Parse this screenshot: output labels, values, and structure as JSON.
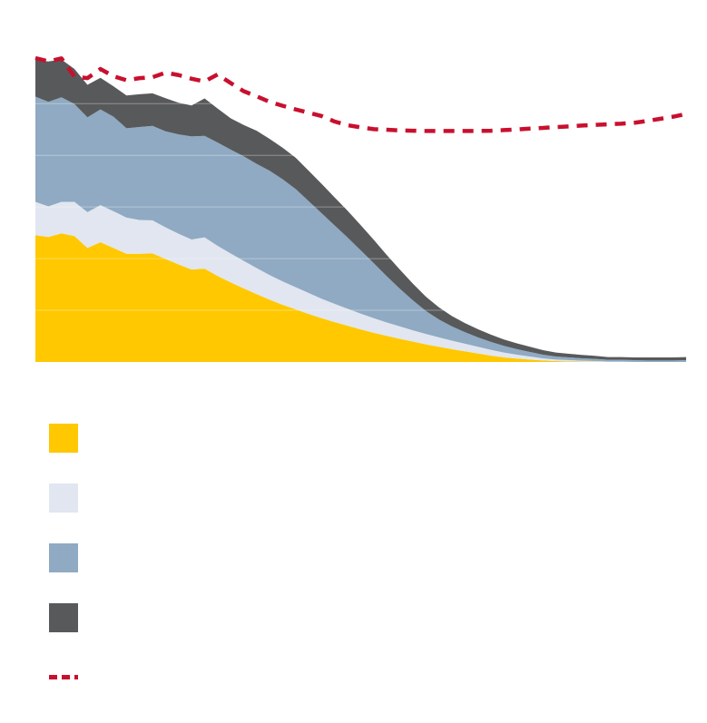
{
  "chart_data": {
    "type": "area",
    "title": "",
    "xlabel": "",
    "ylabel": "",
    "x": [
      0,
      1,
      2,
      3,
      4,
      5,
      6,
      7,
      8,
      9,
      10,
      11,
      12,
      13,
      14,
      15,
      16,
      17,
      18,
      19,
      20,
      21,
      22,
      23,
      24,
      25,
      26,
      27,
      28,
      29,
      30,
      31,
      32,
      33,
      34,
      35,
      36,
      37,
      38,
      39,
      40,
      41,
      42,
      43,
      44,
      45,
      46,
      47,
      48,
      49,
      50
    ],
    "ylim": [
      0,
      100
    ],
    "grid": true,
    "stacked": true,
    "series": [
      {
        "key": "s1",
        "color": "#ffc800",
        "values": [
          41.7,
          41.1,
          42.3,
          41.4,
          37.5,
          39.4,
          37.5,
          35.6,
          35.6,
          35.7,
          33.9,
          32.1,
          30.4,
          30.7,
          28.3,
          26.2,
          24.2,
          22.3,
          20.5,
          18.8,
          17.3,
          15.8,
          14.4,
          13.1,
          11.9,
          10.7,
          9.6,
          8.6,
          7.6,
          6.7,
          5.8,
          5.0,
          4.2,
          3.5,
          2.8,
          2.1,
          1.5,
          1.1,
          0.8,
          0.5,
          0.3,
          0.2,
          0.1,
          0.1,
          0.0,
          0.0,
          0.0,
          0.0,
          0.0,
          0.0,
          0.0
        ]
      },
      {
        "key": "s2",
        "color": "#e1e6f0",
        "values": [
          11.0,
          10.1,
          10.4,
          11.3,
          11.8,
          12.2,
          12.1,
          11.9,
          11.1,
          10.9,
          10.4,
          10.1,
          9.9,
          10.3,
          9.9,
          9.5,
          9.1,
          8.6,
          8.1,
          7.7,
          7.3,
          6.9,
          6.4,
          6.0,
          5.6,
          5.2,
          4.8,
          4.4,
          4.1,
          3.7,
          3.4,
          3.1,
          2.8,
          2.5,
          2.2,
          1.9,
          1.6,
          1.3,
          1.0,
          0.7,
          0.5,
          0.4,
          0.3,
          0.2,
          0.1,
          0.1,
          0.0,
          0.0,
          0.0,
          0.0,
          0.0
        ]
      },
      {
        "key": "s3",
        "color": "#8faac2",
        "values": [
          34.6,
          34.4,
          34.4,
          32.2,
          31.2,
          31.5,
          31.1,
          29.4,
          30.6,
          31.1,
          31.6,
          32.7,
          33.9,
          33.4,
          34.0,
          34.2,
          34.4,
          34.3,
          34.3,
          33.6,
          32.3,
          30.2,
          28.1,
          25.8,
          23.4,
          20.8,
          18.1,
          15.2,
          12.4,
          9.9,
          7.6,
          5.9,
          4.7,
          3.8,
          3.1,
          2.6,
          2.2,
          1.8,
          1.5,
          1.2,
          1.0,
          0.9,
          0.8,
          0.7,
          0.6,
          0.6,
          0.6,
          0.5,
          0.5,
          0.5,
          0.6
        ]
      },
      {
        "key": "s4",
        "color": "#58595b",
        "values": [
          12.0,
          13.3,
          12.4,
          11.5,
          10.7,
          10.4,
          10.0,
          10.8,
          10.8,
          10.7,
          10.9,
          10.4,
          10.2,
          12.3,
          11.2,
          10.3,
          10.3,
          10.9,
          10.5,
          10.4,
          10.3,
          10.0,
          9.7,
          9.2,
          8.8,
          8.3,
          7.7,
          7.0,
          6.3,
          5.5,
          4.7,
          4.0,
          3.4,
          3.0,
          2.7,
          2.4,
          2.1,
          1.9,
          1.7,
          1.5,
          1.3,
          1.2,
          1.1,
          1.0,
          0.9,
          0.9,
          0.9,
          1.0,
          1.0,
          1.0,
          1.0
        ]
      }
    ],
    "line": {
      "key": "dashed",
      "color": "#c8102e",
      "style": "dashed",
      "values": [
        100.0,
        98.9,
        99.9,
        93.9,
        93.4,
        96.4,
        94.0,
        92.7,
        93.4,
        93.7,
        95.2,
        94.4,
        93.2,
        92.3,
        94.6,
        91.8,
        89.1,
        87.4,
        85.6,
        84.3,
        83.1,
        82.0,
        80.9,
        79.1,
        77.9,
        77.2,
        76.6,
        76.4,
        76.2,
        76.1,
        76.0,
        76.0,
        76.0,
        76.0,
        76.0,
        76.1,
        76.3,
        76.5,
        76.8,
        77.0,
        77.3,
        77.5,
        77.8,
        78.0,
        78.2,
        78.4,
        78.7,
        79.3,
        80.0,
        80.7,
        81.6
      ]
    },
    "legend": {
      "placement": "bottom-left",
      "entries": [
        {
          "key": "s1",
          "label": "",
          "color": "#ffc800",
          "marker": "square"
        },
        {
          "key": "s2",
          "label": "",
          "color": "#e1e6f0",
          "marker": "square"
        },
        {
          "key": "s3",
          "label": "",
          "color": "#8faac2",
          "marker": "square"
        },
        {
          "key": "s4",
          "label": "",
          "color": "#58595b",
          "marker": "square"
        },
        {
          "key": "dashed",
          "label": "",
          "color": "#c8102e",
          "marker": "dashed-line"
        }
      ]
    }
  }
}
